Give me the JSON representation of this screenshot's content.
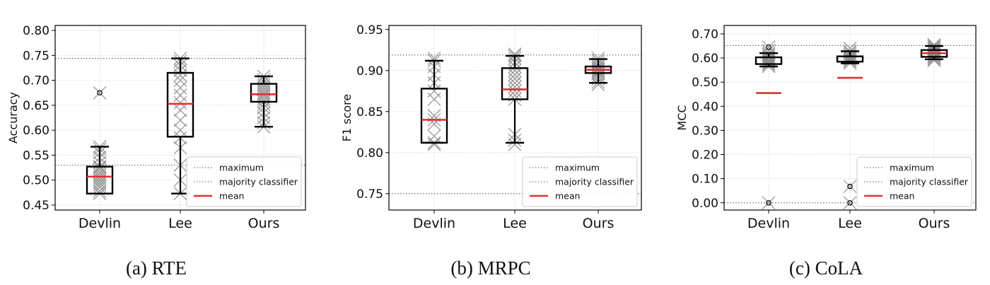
{
  "legend": {
    "maximum": "maximum",
    "majority": "majority classifier",
    "mean": "mean"
  },
  "colors": {
    "mean": "#e03030",
    "box": "#000000",
    "points": "#808080",
    "reference": "#777777",
    "grid": "#dddddd"
  },
  "chart_data": [
    {
      "type": "box",
      "caption": "(a) RTE",
      "ylabel": "Accuracy",
      "categories": [
        "Devlin",
        "Lee",
        "Ours"
      ],
      "ylim": [
        0.44,
        0.81
      ],
      "yticks": [
        0.45,
        0.5,
        0.55,
        0.6,
        0.65,
        0.7,
        0.75,
        0.8
      ],
      "ytick_labels": [
        "0.45",
        "0.50",
        "0.55",
        "0.60",
        "0.65",
        "0.70",
        "0.75",
        "0.80"
      ],
      "maximum": 0.744,
      "majority_classifier": 0.53,
      "legend_position": "lower-right",
      "grid": true,
      "boxes": [
        {
          "name": "Devlin",
          "whisker_low": 0.473,
          "q1": 0.473,
          "median": 0.507,
          "q3": 0.527,
          "whisker_high": 0.567,
          "mean": 0.507,
          "outliers": [
            0.675
          ],
          "points": [
            0.473,
            0.478,
            0.485,
            0.49,
            0.495,
            0.5,
            0.505,
            0.51,
            0.515,
            0.52,
            0.525,
            0.527,
            0.535,
            0.545,
            0.555,
            0.562,
            0.567,
            0.675
          ]
        },
        {
          "name": "Lee",
          "whisker_low": 0.473,
          "q1": 0.587,
          "median": 0.653,
          "q3": 0.715,
          "whisker_high": 0.744,
          "mean": 0.653,
          "outliers": [],
          "points": [
            0.473,
            0.5,
            0.53,
            0.565,
            0.585,
            0.6,
            0.62,
            0.64,
            0.655,
            0.67,
            0.685,
            0.7,
            0.71,
            0.72,
            0.73,
            0.738,
            0.744
          ]
        },
        {
          "name": "Ours",
          "whisker_low": 0.607,
          "q1": 0.657,
          "median": 0.672,
          "q3": 0.693,
          "whisker_high": 0.708,
          "mean": 0.672,
          "outliers": [],
          "points": [
            0.607,
            0.615,
            0.625,
            0.635,
            0.645,
            0.652,
            0.658,
            0.663,
            0.668,
            0.672,
            0.676,
            0.681,
            0.686,
            0.691,
            0.696,
            0.701,
            0.708
          ]
        }
      ]
    },
    {
      "type": "box",
      "caption": "(b) MRPC",
      "ylabel": "F1 score",
      "categories": [
        "Devlin",
        "Lee",
        "Ours"
      ],
      "ylim": [
        0.73,
        0.955
      ],
      "yticks": [
        0.75,
        0.8,
        0.85,
        0.9,
        0.95
      ],
      "ytick_labels": [
        "0.75",
        "0.80",
        "0.85",
        "0.90",
        "0.95"
      ],
      "maximum": 0.919,
      "majority_classifier": 0.75,
      "legend_position": "lower-right",
      "grid": true,
      "boxes": [
        {
          "name": "Devlin",
          "whisker_low": 0.812,
          "q1": 0.812,
          "median": 0.84,
          "q3": 0.878,
          "whisker_high": 0.912,
          "mean": 0.84,
          "outliers": [],
          "points": [
            0.81,
            0.812,
            0.82,
            0.835,
            0.84,
            0.845,
            0.865,
            0.875,
            0.885,
            0.895,
            0.905,
            0.912,
            0.915
          ]
        },
        {
          "name": "Lee",
          "whisker_low": 0.812,
          "q1": 0.865,
          "median": 0.877,
          "q3": 0.903,
          "whisker_high": 0.918,
          "mean": 0.877,
          "outliers": [],
          "points": [
            0.81,
            0.815,
            0.822,
            0.865,
            0.87,
            0.875,
            0.88,
            0.885,
            0.89,
            0.895,
            0.9,
            0.905,
            0.91,
            0.915,
            0.918,
            0.92
          ]
        },
        {
          "name": "Ours",
          "whisker_low": 0.885,
          "q1": 0.897,
          "median": 0.901,
          "q3": 0.905,
          "whisker_high": 0.914,
          "mean": 0.901,
          "outliers": [],
          "points": [
            0.883,
            0.886,
            0.89,
            0.893,
            0.896,
            0.898,
            0.9,
            0.902,
            0.904,
            0.906,
            0.909,
            0.912,
            0.915
          ]
        }
      ]
    },
    {
      "type": "box",
      "caption": "(c) CoLA",
      "ylabel": "MCC",
      "categories": [
        "Devlin",
        "Lee",
        "Ours"
      ],
      "ylim": [
        -0.03,
        0.735
      ],
      "yticks": [
        0.0,
        0.1,
        0.2,
        0.3,
        0.4,
        0.5,
        0.6,
        0.7
      ],
      "ytick_labels": [
        "0.00",
        "0.10",
        "0.20",
        "0.30",
        "0.40",
        "0.50",
        "0.60",
        "0.70"
      ],
      "maximum": 0.652,
      "majority_classifier": 0.0,
      "legend_position": "lower-right",
      "grid": true,
      "boxes": [
        {
          "name": "Devlin",
          "whisker_low": 0.565,
          "q1": 0.575,
          "median": 0.59,
          "q3": 0.603,
          "whisker_high": 0.62,
          "mean": 0.455,
          "outliers": [
            0.645,
            0.0
          ],
          "points": [
            0.0,
            0.565,
            0.572,
            0.578,
            0.584,
            0.59,
            0.596,
            0.602,
            0.608,
            0.615,
            0.62,
            0.63,
            0.645
          ]
        },
        {
          "name": "Lee",
          "whisker_low": 0.578,
          "q1": 0.585,
          "median": 0.597,
          "q3": 0.607,
          "whisker_high": 0.628,
          "mean": 0.518,
          "outliers": [
            0.068,
            0.0
          ],
          "points": [
            0.0,
            0.068,
            0.578,
            0.585,
            0.59,
            0.596,
            0.602,
            0.608,
            0.615,
            0.622,
            0.628,
            0.64
          ]
        },
        {
          "name": "Ours",
          "whisker_low": 0.595,
          "q1": 0.605,
          "median": 0.62,
          "q3": 0.633,
          "whisker_high": 0.65,
          "mean": 0.62,
          "outliers": [],
          "points": [
            0.59,
            0.595,
            0.6,
            0.605,
            0.61,
            0.615,
            0.62,
            0.625,
            0.63,
            0.635,
            0.64,
            0.645,
            0.65,
            0.655
          ]
        }
      ]
    }
  ]
}
